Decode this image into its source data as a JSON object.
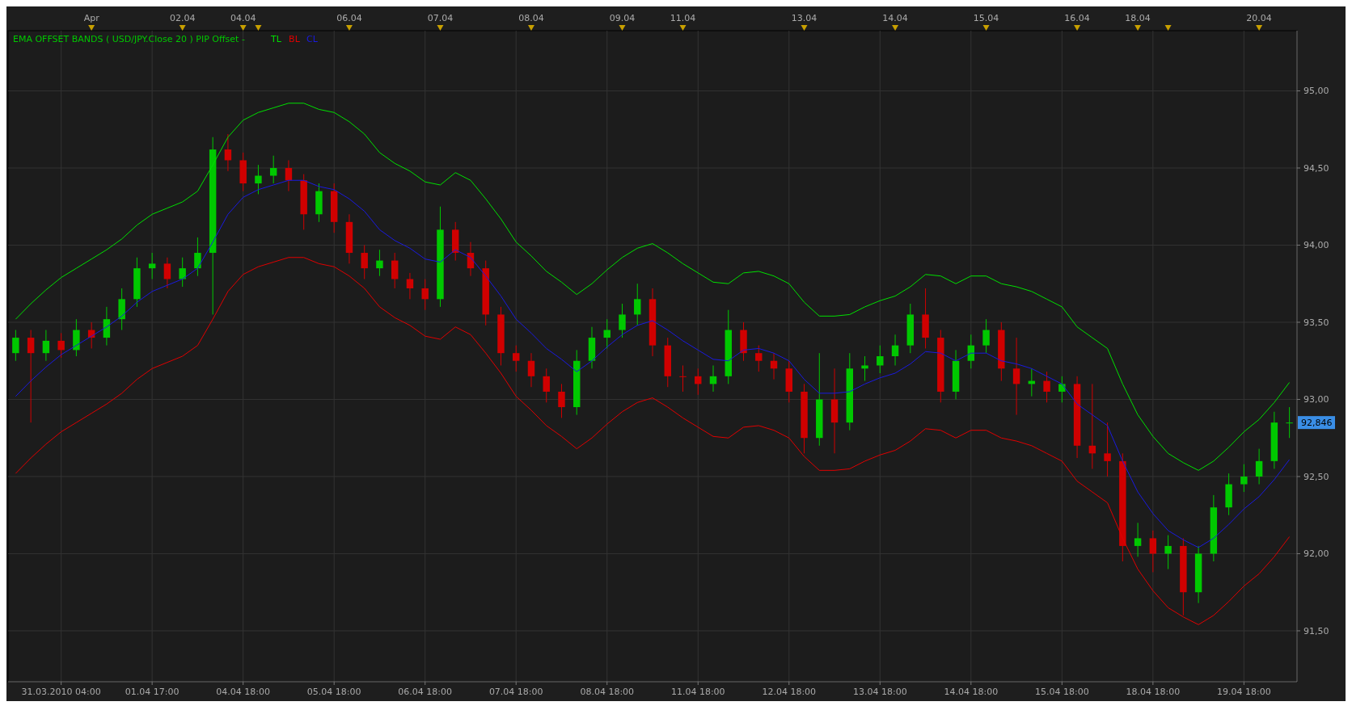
{
  "chart_data": {
    "type": "candlestick",
    "title": "EMA OFFSET BANDS ( USD/JPY.Close  20 ) PIP Offset -",
    "categories": [
      null,
      null,
      null,
      "31.03.2010 04:00",
      null,
      null,
      null,
      null,
      null,
      "01.04 17:00",
      null,
      null,
      null,
      null,
      null,
      "04.04 18:00",
      null,
      null,
      null,
      null,
      null,
      "05.04 18:00",
      null,
      null,
      null,
      null,
      null,
      "06.04 18:00",
      null,
      null,
      null,
      null,
      null,
      "07.04 18:00",
      null,
      null,
      null,
      null,
      null,
      "08.04 18:00",
      null,
      null,
      null,
      null,
      null,
      "11.04 18:00",
      null,
      null,
      null,
      null,
      null,
      "12.04 18:00",
      null,
      null,
      null,
      null,
      null,
      "13.04 18:00",
      null,
      null,
      null,
      null,
      null,
      "14.04 18:00",
      null,
      null,
      null,
      null,
      null,
      "15.04 18:00",
      null,
      null,
      null,
      null,
      null,
      "18.04 18:00",
      null,
      null,
      null,
      null,
      null,
      "19.04 18:00",
      null,
      null,
      null
    ],
    "ohlc": [
      [
        93.3,
        93.45,
        93.25,
        93.4
      ],
      [
        93.4,
        93.45,
        92.85,
        93.3
      ],
      [
        93.3,
        93.45,
        93.25,
        93.38
      ],
      [
        93.38,
        93.43,
        93.27,
        93.32
      ],
      [
        93.32,
        93.52,
        93.28,
        93.45
      ],
      [
        93.45,
        93.5,
        93.33,
        93.4
      ],
      [
        93.4,
        93.6,
        93.35,
        93.52
      ],
      [
        93.52,
        93.72,
        93.45,
        93.65
      ],
      [
        93.65,
        93.92,
        93.6,
        93.85
      ],
      [
        93.85,
        93.95,
        93.78,
        93.88
      ],
      [
        93.88,
        93.92,
        93.72,
        93.78
      ],
      [
        93.78,
        93.92,
        93.73,
        93.85
      ],
      [
        93.85,
        94.05,
        93.8,
        93.95
      ],
      [
        93.95,
        94.7,
        93.55,
        94.62
      ],
      [
        94.62,
        94.72,
        94.48,
        94.55
      ],
      [
        94.55,
        94.6,
        94.35,
        94.4
      ],
      [
        94.4,
        94.52,
        94.33,
        94.45
      ],
      [
        94.45,
        94.58,
        94.4,
        94.5
      ],
      [
        94.5,
        94.55,
        94.35,
        94.42
      ],
      [
        94.42,
        94.46,
        94.1,
        94.2
      ],
      [
        94.2,
        94.4,
        94.15,
        94.35
      ],
      [
        94.35,
        94.4,
        94.08,
        94.15
      ],
      [
        94.15,
        94.2,
        93.88,
        93.95
      ],
      [
        93.95,
        94.0,
        93.78,
        93.85
      ],
      [
        93.85,
        93.97,
        93.8,
        93.9
      ],
      [
        93.9,
        93.95,
        93.72,
        93.78
      ],
      [
        93.78,
        93.82,
        93.65,
        93.72
      ],
      [
        93.72,
        93.78,
        93.58,
        93.65
      ],
      [
        93.65,
        94.25,
        93.6,
        94.1
      ],
      [
        94.1,
        94.15,
        93.9,
        93.95
      ],
      [
        93.95,
        94.02,
        93.8,
        93.85
      ],
      [
        93.85,
        93.9,
        93.48,
        93.55
      ],
      [
        93.55,
        93.6,
        93.22,
        93.3
      ],
      [
        93.3,
        93.35,
        93.18,
        93.25
      ],
      [
        93.25,
        93.3,
        93.08,
        93.15
      ],
      [
        93.15,
        93.2,
        92.98,
        93.05
      ],
      [
        93.05,
        93.1,
        92.88,
        92.95
      ],
      [
        92.95,
        93.32,
        92.9,
        93.25
      ],
      [
        93.25,
        93.47,
        93.2,
        93.4
      ],
      [
        93.4,
        93.52,
        93.33,
        93.45
      ],
      [
        93.45,
        93.62,
        93.4,
        93.55
      ],
      [
        93.55,
        93.75,
        93.48,
        93.65
      ],
      [
        93.65,
        93.72,
        93.28,
        93.35
      ],
      [
        93.35,
        93.4,
        93.08,
        93.15
      ],
      [
        93.15,
        93.22,
        93.05,
        93.15
      ],
      [
        93.15,
        93.2,
        93.03,
        93.1
      ],
      [
        93.1,
        93.22,
        93.05,
        93.15
      ],
      [
        93.15,
        93.58,
        93.1,
        93.45
      ],
      [
        93.45,
        93.5,
        93.25,
        93.3
      ],
      [
        93.3,
        93.35,
        93.18,
        93.25
      ],
      [
        93.25,
        93.3,
        93.13,
        93.2
      ],
      [
        93.2,
        93.25,
        92.98,
        93.05
      ],
      [
        93.05,
        93.1,
        92.65,
        92.75
      ],
      [
        92.75,
        93.3,
        92.7,
        93.0
      ],
      [
        93.0,
        93.2,
        92.65,
        92.85
      ],
      [
        92.85,
        93.3,
        92.8,
        93.2
      ],
      [
        93.2,
        93.28,
        93.12,
        93.22
      ],
      [
        93.22,
        93.35,
        93.17,
        93.28
      ],
      [
        93.28,
        93.42,
        93.22,
        93.35
      ],
      [
        93.35,
        93.62,
        93.3,
        93.55
      ],
      [
        93.55,
        93.72,
        93.33,
        93.4
      ],
      [
        93.4,
        93.45,
        92.98,
        93.05
      ],
      [
        93.05,
        93.32,
        93.0,
        93.25
      ],
      [
        93.25,
        93.42,
        93.2,
        93.35
      ],
      [
        93.35,
        93.52,
        93.3,
        93.45
      ],
      [
        93.45,
        93.5,
        93.12,
        93.2
      ],
      [
        93.2,
        93.4,
        92.9,
        93.1
      ],
      [
        93.1,
        93.2,
        93.02,
        93.12
      ],
      [
        93.12,
        93.18,
        92.98,
        93.05
      ],
      [
        93.05,
        93.15,
        92.98,
        93.1
      ],
      [
        93.1,
        93.15,
        92.62,
        92.7
      ],
      [
        92.7,
        93.1,
        92.55,
        92.65
      ],
      [
        92.65,
        92.85,
        92.5,
        92.6
      ],
      [
        92.6,
        92.65,
        91.95,
        92.05
      ],
      [
        92.05,
        92.2,
        91.98,
        92.1
      ],
      [
        92.1,
        92.15,
        91.88,
        92.0
      ],
      [
        92.0,
        92.12,
        91.9,
        92.05
      ],
      [
        92.05,
        92.1,
        91.6,
        91.75
      ],
      [
        91.75,
        92.05,
        91.68,
        92.0
      ],
      [
        92.0,
        92.38,
        91.95,
        92.3
      ],
      [
        92.3,
        92.52,
        92.25,
        92.45
      ],
      [
        92.45,
        92.58,
        92.4,
        92.5
      ],
      [
        92.5,
        92.68,
        92.45,
        92.6
      ],
      [
        92.6,
        92.92,
        92.55,
        92.85
      ],
      [
        92.85,
        92.95,
        92.75,
        92.85
      ]
    ],
    "colors": [
      "#00c800",
      "#d00000",
      "#00c800",
      "#d00000",
      "#00c800",
      "#d00000",
      "#00c800",
      "#00c800",
      "#00c800",
      "#00c800",
      "#d00000",
      "#00c800",
      "#00c800",
      "#00c800",
      "#d00000",
      "#d00000",
      "#00c800",
      "#00c800",
      "#d00000",
      "#d00000",
      "#00c800",
      "#d00000",
      "#d00000",
      "#d00000",
      "#00c800",
      "#d00000",
      "#d00000",
      "#d00000",
      "#00c800",
      "#d00000",
      "#d00000",
      "#d00000",
      "#d00000",
      "#d00000",
      "#d00000",
      "#d00000",
      "#d00000",
      "#00c800",
      "#00c800",
      "#00c800",
      "#00c800",
      "#00c800",
      "#d00000",
      "#d00000",
      "#d00000",
      "#d00000",
      "#00c800",
      "#00c800",
      "#d00000",
      "#d00000",
      "#d00000",
      "#d00000",
      "#d00000",
      "#00c800",
      "#d00000",
      "#00c800",
      "#00c800",
      "#00c800",
      "#00c800",
      "#00c800",
      "#d00000",
      "#d00000",
      "#00c800",
      "#00c800",
      "#00c800",
      "#d00000",
      "#d00000",
      "#00c800",
      "#d00000",
      "#00c800",
      "#d00000",
      "#d00000",
      "#d00000",
      "#d00000",
      "#00c800",
      "#d00000",
      "#00c800",
      "#d00000",
      "#00c800",
      "#00c800",
      "#00c800",
      "#00c800",
      "#00c800",
      "#00c800",
      "#00c800"
    ],
    "series": [
      {
        "name": "TL",
        "type": "line",
        "color": "#00e000",
        "values": [
          93.52,
          93.62,
          93.71,
          93.79,
          93.85,
          93.91,
          93.97,
          94.04,
          94.13,
          94.2,
          94.24,
          94.28,
          94.35,
          94.52,
          94.7,
          94.81,
          94.86,
          94.89,
          94.92,
          94.92,
          94.88,
          94.86,
          94.8,
          94.72,
          94.6,
          94.53,
          94.48,
          94.41,
          94.39,
          94.47,
          94.42,
          94.3,
          94.17,
          94.02,
          93.93,
          93.83,
          93.76,
          93.68,
          93.75,
          93.84,
          93.92,
          93.98,
          94.01,
          93.95,
          93.88,
          93.82,
          93.76,
          93.75,
          93.82,
          93.83,
          93.8,
          93.75,
          93.63,
          93.54,
          93.54,
          93.55,
          93.6,
          93.64,
          93.67,
          93.73,
          93.81,
          93.8,
          93.75,
          93.8,
          93.8,
          93.75,
          93.73,
          93.7,
          93.65,
          93.6,
          93.47,
          93.4,
          93.33,
          93.1,
          92.9,
          92.76,
          92.65,
          92.59,
          92.54,
          92.6,
          92.69,
          92.79,
          92.87,
          92.98,
          93.11
        ]
      },
      {
        "name": "BL",
        "type": "line",
        "color": "#e00000",
        "values": [
          92.52,
          92.62,
          92.71,
          92.79,
          92.85,
          92.91,
          92.97,
          93.04,
          93.13,
          93.2,
          93.24,
          93.28,
          93.35,
          93.52,
          93.7,
          93.81,
          93.86,
          93.89,
          93.92,
          93.92,
          93.88,
          93.86,
          93.8,
          93.72,
          93.6,
          93.53,
          93.48,
          93.41,
          93.39,
          93.47,
          93.42,
          93.3,
          93.17,
          93.02,
          92.93,
          92.83,
          92.76,
          92.68,
          92.75,
          92.84,
          92.92,
          92.98,
          93.01,
          92.95,
          92.88,
          92.82,
          92.76,
          92.75,
          92.82,
          92.83,
          92.8,
          92.75,
          92.63,
          92.54,
          92.54,
          92.55,
          92.6,
          92.64,
          92.67,
          92.73,
          92.81,
          92.8,
          92.75,
          92.8,
          92.8,
          92.75,
          92.73,
          92.7,
          92.65,
          92.6,
          92.47,
          92.4,
          92.33,
          92.1,
          91.9,
          91.76,
          91.65,
          91.59,
          91.54,
          91.6,
          91.69,
          91.79,
          91.87,
          91.98,
          92.11
        ]
      },
      {
        "name": "CL",
        "type": "line",
        "color": "#1a1ae0",
        "values": [
          93.02,
          93.12,
          93.21,
          93.29,
          93.35,
          93.41,
          93.47,
          93.54,
          93.63,
          93.7,
          93.74,
          93.78,
          93.85,
          94.02,
          94.2,
          94.31,
          94.36,
          94.39,
          94.42,
          94.42,
          94.38,
          94.36,
          94.3,
          94.22,
          94.1,
          94.03,
          93.98,
          93.91,
          93.89,
          93.97,
          93.92,
          93.8,
          93.67,
          93.52,
          93.43,
          93.33,
          93.26,
          93.18,
          93.25,
          93.34,
          93.42,
          93.48,
          93.51,
          93.45,
          93.38,
          93.32,
          93.26,
          93.25,
          93.32,
          93.33,
          93.3,
          93.25,
          93.13,
          93.04,
          93.04,
          93.05,
          93.1,
          93.14,
          93.17,
          93.23,
          93.31,
          93.3,
          93.25,
          93.3,
          93.3,
          93.25,
          93.23,
          93.2,
          93.15,
          93.1,
          92.97,
          92.9,
          92.83,
          92.6,
          92.4,
          92.26,
          92.15,
          92.09,
          92.04,
          92.1,
          92.19,
          92.29,
          92.37,
          92.48,
          92.61
        ]
      }
    ],
    "ylim": [
      91.17,
      95.39
    ],
    "yticks": [
      {
        "value": 91.5,
        "label": "91,50"
      },
      {
        "value": 92,
        "label": "92,00"
      },
      {
        "value": 92.5,
        "label": "92,50"
      },
      {
        "value": 93,
        "label": "93,00"
      },
      {
        "value": 93.5,
        "label": "93,50"
      },
      {
        "value": 94,
        "label": "94,00"
      },
      {
        "value": 94.5,
        "label": "94,50"
      },
      {
        "value": 95,
        "label": "95,00"
      }
    ],
    "annotations": [
      "92,846",
      "Apr",
      "02.04",
      "04.04",
      "06.04",
      "07.04",
      "08.04",
      "09.04",
      "11.04",
      "13.04",
      "14.04",
      "15.04",
      "16.04",
      "18.04",
      "20.04"
    ],
    "grid": true,
    "legend": "top left"
  }
}
